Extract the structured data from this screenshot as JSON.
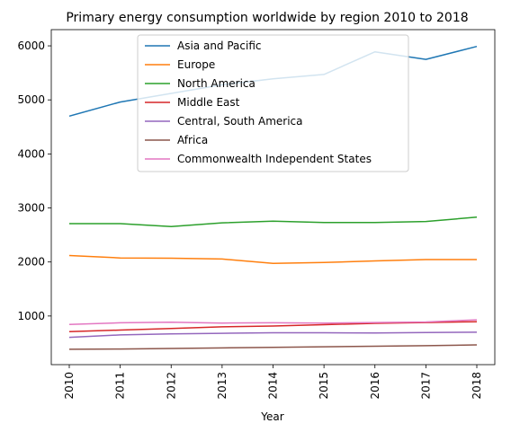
{
  "chart_data": {
    "type": "line",
    "title": "Primary energy consumption worldwide by region 2010 to 2018",
    "xlabel": "Year",
    "ylabel": "",
    "x": [
      "2010",
      "2011",
      "2012",
      "2013",
      "2014",
      "2015",
      "2016",
      "2017",
      "2018"
    ],
    "ylim": [
      100,
      6300
    ],
    "yticks": [
      1000,
      2000,
      3000,
      4000,
      5000,
      6000
    ],
    "grid": false,
    "legend_position": "top-center",
    "series": [
      {
        "name": "Asia and Pacific",
        "color": "#1f77b4",
        "values": [
          4700,
          4960,
          5120,
          5280,
          5390,
          5470,
          5890,
          5750,
          5990
        ]
      },
      {
        "name": "Europe",
        "color": "#ff7f0e",
        "values": [
          2120,
          2075,
          2070,
          2055,
          1975,
          1990,
          2020,
          2045,
          2045
        ]
      },
      {
        "name": "North America",
        "color": "#2ca02c",
        "values": [
          2710,
          2710,
          2655,
          2725,
          2755,
          2730,
          2730,
          2750,
          2830
        ]
      },
      {
        "name": "Middle East",
        "color": "#d62728",
        "values": [
          710,
          740,
          770,
          800,
          815,
          840,
          865,
          880,
          895
        ]
      },
      {
        "name": "Central, South America",
        "color": "#9467bd",
        "values": [
          605,
          650,
          670,
          680,
          690,
          690,
          685,
          695,
          700
        ]
      },
      {
        "name": "Africa",
        "color": "#8c564b",
        "values": [
          385,
          390,
          400,
          410,
          420,
          430,
          440,
          450,
          465
        ]
      },
      {
        "name": "Commonwealth Independent States",
        "color": "#e377c2",
        "values": [
          845,
          875,
          885,
          870,
          875,
          870,
          880,
          890,
          930
        ]
      }
    ]
  }
}
